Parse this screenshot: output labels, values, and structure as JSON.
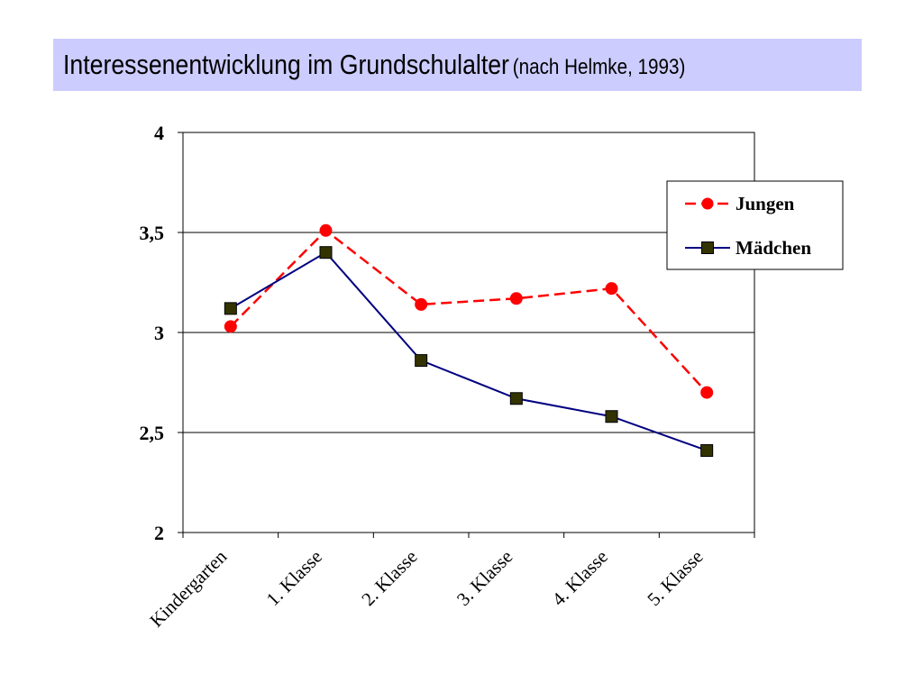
{
  "title": {
    "main": "Interessenentwicklung im Grundschulalter",
    "sub": "(nach Helmke, 1993)"
  },
  "colors": {
    "title_bg": "#ccccff",
    "jungen": "#ff0000",
    "maedchen": "#000080",
    "maedchen_marker": "#333300"
  },
  "chart_data": {
    "type": "line",
    "categories": [
      "Kindergarten",
      "1. Klasse",
      "2. Klasse",
      "3. Klasse",
      "4. Klasse",
      "5. Klasse"
    ],
    "series": [
      {
        "name": "Jungen",
        "values": [
          3.03,
          3.51,
          3.14,
          3.17,
          3.22,
          2.7
        ],
        "line_style": "dashed",
        "marker": "circle",
        "color": "#ff0000"
      },
      {
        "name": "Mädchen",
        "values": [
          3.12,
          3.4,
          2.86,
          2.67,
          2.58,
          2.41
        ],
        "line_style": "solid",
        "marker": "square",
        "color": "#000080"
      }
    ],
    "ylim": [
      2,
      4
    ],
    "yticks": [
      2,
      2.5,
      3,
      3.5,
      4
    ],
    "ytick_labels": [
      "2",
      "2,5",
      "3",
      "3,5",
      "4"
    ],
    "grid": true,
    "legend_position": "top-right"
  }
}
